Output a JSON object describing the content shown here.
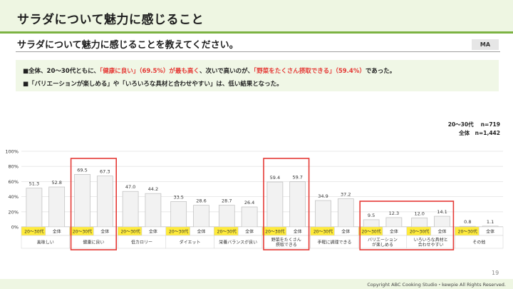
{
  "header": {
    "title": "サラダについて魅力に感じること"
  },
  "question": {
    "text": "サラダについて魅力に感じることを教えてください。",
    "badge": "MA"
  },
  "summary": {
    "line1": [
      {
        "text": "■全体、20～30代ともに、",
        "emphasis": false
      },
      {
        "text": "「健康に良い」（69.5%）が最も高く",
        "emphasis": true
      },
      {
        "text": "、次いで高いのが、",
        "emphasis": false
      },
      {
        "text": "「野菜をたくさん摂取できる」（59.4%）",
        "emphasis": true
      },
      {
        "text": "であった。",
        "emphasis": false
      }
    ],
    "line2": "■「バリエーションが楽しめる」や「いろいろな具材と合わせやすい」は、低い結果となった。"
  },
  "legend": {
    "line1": "20～30代　 n=719",
    "line2": "全体　n=1,442"
  },
  "colors": {
    "bar_fill": "#f2f2f2",
    "bar_stroke": "#bdbdbd",
    "highlight_box": "#e53935",
    "young_label_bg": "#ffeb3b",
    "brand_green": "#7cb342"
  },
  "chart_data": {
    "type": "bar",
    "title": "",
    "xlabel": "",
    "ylabel": "",
    "ylim": [
      0,
      100
    ],
    "y_ticks": [
      "0%",
      "20%",
      "40%",
      "60%",
      "80%",
      "100%"
    ],
    "series_labels": [
      "20～30代",
      "全体"
    ],
    "grid": true,
    "categories": [
      {
        "name": "美味しい",
        "values": [
          51.3,
          52.8
        ],
        "highlight": false
      },
      {
        "name": "健康に良い",
        "values": [
          69.5,
          67.3
        ],
        "highlight": true
      },
      {
        "name": "低カロリー",
        "values": [
          47.0,
          44.2
        ],
        "highlight": false
      },
      {
        "name": "ダイエット",
        "values": [
          33.5,
          28.6
        ],
        "highlight": false
      },
      {
        "name": "栄養バランスが良い",
        "values": [
          28.7,
          26.4
        ],
        "highlight": false
      },
      {
        "name": "野菜をたくさん摂取できる",
        "values": [
          59.4,
          59.7
        ],
        "highlight": true
      },
      {
        "name": "手軽に調理できる",
        "values": [
          34.9,
          37.2
        ],
        "highlight": false
      },
      {
        "name": "バリエーションが楽しめる",
        "values": [
          9.5,
          12.3
        ],
        "highlight": true,
        "group": "low"
      },
      {
        "name": "いろいろな具材と合わせやすい",
        "values": [
          12.0,
          14.1
        ],
        "highlight": true,
        "group": "low"
      },
      {
        "name": "その他",
        "values": [
          0.8,
          1.1
        ],
        "highlight": false
      }
    ]
  },
  "footer": {
    "page": "19",
    "copyright": "Copyright ABC Cooking Studio・kewpie All Rights Reserved."
  }
}
